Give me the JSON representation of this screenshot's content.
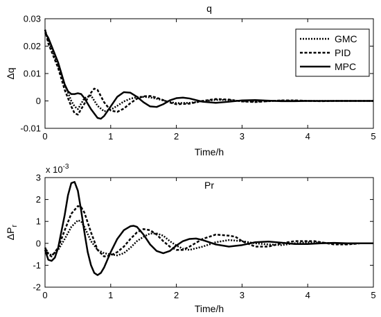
{
  "chart_data": [
    {
      "type": "line",
      "title": "q",
      "xlabel": "Time/h",
      "ylabel": "Δq",
      "xlim": [
        0,
        5
      ],
      "ylim": [
        -0.01,
        0.03
      ],
      "xticks": [
        "0",
        "1",
        "2",
        "3",
        "4",
        "5"
      ],
      "yticks": [
        "-0.01",
        "0",
        "0.01",
        "0.02",
        "0.03"
      ],
      "grid": false,
      "legend": "top-right",
      "series": [
        {
          "name": "GMC",
          "style": "dotted",
          "x": [
            0,
            0.05,
            0.1,
            0.2,
            0.3,
            0.4,
            0.45,
            0.5,
            0.6,
            0.7,
            0.8,
            0.9,
            1.0,
            1.1,
            1.2,
            1.3,
            1.4,
            1.5,
            1.6,
            1.7,
            1.8,
            1.9,
            2.0,
            2.2,
            2.4,
            2.6,
            2.8,
            3.0,
            3.2,
            3.4,
            3.6,
            3.8,
            4.0,
            4.2,
            4.4,
            4.6,
            4.8,
            5.0
          ],
          "y": [
            0.026,
            0.022,
            0.019,
            0.013,
            0.006,
            0.0,
            -0.002,
            -0.003,
            0.001,
            0.002,
            -0.0018,
            -0.0038,
            -0.0032,
            -0.0018,
            -0.0002,
            0.0008,
            0.0014,
            0.0015,
            0.0013,
            0.0008,
            0.0002,
            -0.0004,
            -0.0008,
            -0.0007,
            -0.0001,
            0.0004,
            0.0003,
            -0.0001,
            -0.0002,
            -0.0001,
            0.0001,
            0.0001,
            0.0,
            0.0,
            0.0,
            0.0,
            0.0,
            0.0
          ]
        },
        {
          "name": "PID",
          "style": "dashed",
          "x": [
            0,
            0.05,
            0.1,
            0.2,
            0.3,
            0.4,
            0.45,
            0.5,
            0.6,
            0.7,
            0.75,
            0.8,
            0.9,
            1.0,
            1.1,
            1.2,
            1.3,
            1.4,
            1.5,
            1.6,
            1.7,
            1.8,
            1.9,
            2.0,
            2.2,
            2.4,
            2.6,
            2.8,
            3.0,
            3.2,
            3.4,
            3.6,
            3.8,
            4.0,
            4.2,
            4.4,
            4.6,
            4.8,
            5.0
          ],
          "y": [
            0.026,
            0.021,
            0.018,
            0.012,
            0.004,
            -0.002,
            -0.0045,
            -0.005,
            -0.001,
            0.003,
            0.0045,
            0.004,
            -0.0005,
            -0.0035,
            -0.004,
            -0.0028,
            -0.0008,
            0.0008,
            0.0017,
            0.0018,
            0.0012,
            0.0003,
            -0.0006,
            -0.0012,
            -0.001,
            0.0,
            0.0007,
            0.0005,
            -0.0002,
            -0.0004,
            -0.0001,
            0.0002,
            0.0002,
            0.0,
            -0.0001,
            0.0,
            0.0,
            0.0,
            0.0
          ]
        },
        {
          "name": "MPC",
          "style": "solid",
          "x": [
            0,
            0.05,
            0.1,
            0.2,
            0.3,
            0.35,
            0.4,
            0.45,
            0.5,
            0.55,
            0.6,
            0.7,
            0.8,
            0.85,
            0.9,
            1.0,
            1.1,
            1.2,
            1.3,
            1.4,
            1.5,
            1.6,
            1.7,
            1.8,
            1.9,
            2.0,
            2.1,
            2.2,
            2.3,
            2.4,
            2.6,
            2.8,
            3.0,
            3.2,
            3.4,
            3.6,
            3.8,
            4.0,
            4.2,
            4.4,
            4.6,
            4.8,
            5.0
          ],
          "y": [
            0.025,
            0.023,
            0.02,
            0.014,
            0.006,
            0.0035,
            0.0025,
            0.0025,
            0.0028,
            0.0025,
            0.001,
            -0.003,
            -0.0062,
            -0.0065,
            -0.0055,
            -0.002,
            0.0015,
            0.0032,
            0.003,
            0.0015,
            -0.0005,
            -0.002,
            -0.0022,
            -0.0012,
            0.0002,
            0.001,
            0.0012,
            0.0009,
            0.0003,
            -0.0003,
            -0.0007,
            -0.0003,
            0.0002,
            0.0003,
            0.0001,
            -0.0001,
            -0.0001,
            0.0,
            0.0,
            0.0,
            0.0,
            0.0,
            0.0
          ]
        }
      ]
    },
    {
      "type": "line",
      "title": "Pr",
      "xlabel": "Time/h",
      "ylabel": "ΔP",
      "ylabel_sub": "r",
      "scale_label": "x 10",
      "scale_exp": "-3",
      "xlim": [
        0,
        5
      ],
      "ylim": [
        -2,
        3
      ],
      "xticks": [
        "0",
        "1",
        "2",
        "3",
        "4",
        "5"
      ],
      "yticks": [
        "-2",
        "-1",
        "0",
        "1",
        "2",
        "3"
      ],
      "grid": false,
      "series": [
        {
          "name": "GMC",
          "style": "dotted",
          "x": [
            0,
            0.05,
            0.1,
            0.2,
            0.3,
            0.4,
            0.5,
            0.55,
            0.6,
            0.7,
            0.8,
            0.9,
            1.0,
            1.1,
            1.2,
            1.3,
            1.4,
            1.5,
            1.6,
            1.7,
            1.8,
            1.9,
            2.0,
            2.1,
            2.2,
            2.4,
            2.6,
            2.8,
            3.0,
            3.2,
            3.4,
            3.6,
            3.8,
            4.0,
            4.2,
            4.4,
            4.6,
            4.8,
            5.0
          ],
          "y": [
            -0.2,
            -0.45,
            -0.55,
            -0.3,
            0.2,
            0.75,
            1.05,
            1.0,
            0.75,
            0.1,
            -0.3,
            -0.45,
            -0.5,
            -0.55,
            -0.45,
            -0.2,
            0.1,
            0.3,
            0.45,
            0.45,
            0.35,
            0.1,
            -0.1,
            -0.25,
            -0.3,
            -0.15,
            0.05,
            0.15,
            0.1,
            0.0,
            -0.05,
            -0.08,
            0.0,
            0.05,
            0.03,
            0.0,
            -0.02,
            0.0,
            0.0
          ]
        },
        {
          "name": "PID",
          "style": "dashed",
          "x": [
            0,
            0.05,
            0.1,
            0.2,
            0.3,
            0.4,
            0.5,
            0.55,
            0.6,
            0.7,
            0.8,
            0.9,
            1.0,
            1.1,
            1.2,
            1.3,
            1.4,
            1.5,
            1.6,
            1.7,
            1.8,
            1.9,
            2.0,
            2.1,
            2.2,
            2.4,
            2.6,
            2.8,
            2.9,
            3.0,
            3.2,
            3.4,
            3.6,
            3.8,
            4.0,
            4.1,
            4.2,
            4.4,
            4.6,
            4.8,
            5.0
          ],
          "y": [
            -0.2,
            -0.5,
            -0.6,
            -0.2,
            0.6,
            1.35,
            1.7,
            1.65,
            1.4,
            0.5,
            -0.3,
            -0.6,
            -0.55,
            -0.4,
            -0.15,
            0.2,
            0.5,
            0.65,
            0.6,
            0.4,
            0.1,
            -0.15,
            -0.3,
            -0.3,
            -0.15,
            0.2,
            0.4,
            0.35,
            0.3,
            0.1,
            -0.15,
            -0.15,
            0.0,
            0.1,
            0.1,
            0.1,
            0.05,
            -0.05,
            -0.05,
            0.0,
            0.0
          ]
        },
        {
          "name": "MPC",
          "style": "solid",
          "x": [
            0,
            0.05,
            0.1,
            0.15,
            0.2,
            0.3,
            0.35,
            0.4,
            0.45,
            0.5,
            0.55,
            0.6,
            0.65,
            0.7,
            0.75,
            0.8,
            0.85,
            0.9,
            1.0,
            1.1,
            1.2,
            1.3,
            1.35,
            1.4,
            1.5,
            1.6,
            1.7,
            1.8,
            1.9,
            2.0,
            2.1,
            2.2,
            2.3,
            2.4,
            2.5,
            2.6,
            2.8,
            3.0,
            3.2,
            3.4,
            3.6,
            3.8,
            4.0,
            4.2,
            4.4,
            4.6,
            4.8,
            5.0
          ],
          "y": [
            -0.3,
            -0.75,
            -0.8,
            -0.65,
            -0.2,
            1.3,
            2.2,
            2.75,
            2.8,
            2.4,
            1.5,
            0.5,
            -0.4,
            -1.0,
            -1.35,
            -1.45,
            -1.35,
            -1.1,
            -0.4,
            0.2,
            0.6,
            0.78,
            0.8,
            0.75,
            0.4,
            -0.05,
            -0.35,
            -0.45,
            -0.35,
            -0.1,
            0.1,
            0.2,
            0.22,
            0.15,
            0.05,
            -0.05,
            -0.15,
            -0.08,
            0.05,
            0.08,
            0.03,
            -0.03,
            -0.03,
            0.0,
            0.02,
            0.0,
            0.0,
            0.0
          ]
        }
      ]
    }
  ]
}
